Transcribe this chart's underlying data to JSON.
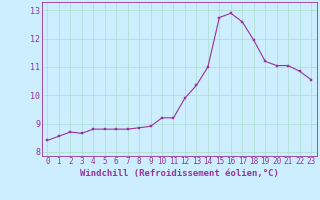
{
  "x": [
    0,
    1,
    2,
    3,
    4,
    5,
    6,
    7,
    8,
    9,
    10,
    11,
    12,
    13,
    14,
    15,
    16,
    17,
    18,
    19,
    20,
    21,
    22,
    23
  ],
  "y": [
    8.4,
    8.55,
    8.7,
    8.65,
    8.8,
    8.8,
    8.8,
    8.8,
    8.85,
    8.9,
    9.2,
    9.2,
    9.9,
    10.35,
    11.0,
    12.75,
    12.9,
    12.6,
    11.95,
    11.2,
    11.05,
    11.05,
    10.85,
    10.55
  ],
  "line_color": "#993399",
  "marker": "s",
  "markersize": 2.0,
  "linewidth": 0.8,
  "xlabel": "Windchill (Refroidissement éolien,°C)",
  "xlabel_color": "#993399",
  "xlabel_fontsize": 6.5,
  "background_color": "#cceeff",
  "grid_color": "#aaddcc",
  "axis_bg": "#cceeff",
  "ylim": [
    7.85,
    13.3
  ],
  "xlim": [
    -0.5,
    23.5
  ],
  "yticks": [
    8,
    9,
    10,
    11,
    12,
    13
  ],
  "xtick_labels": [
    "0",
    "1",
    "2",
    "3",
    "4",
    "5",
    "6",
    "7",
    "8",
    "9",
    "10",
    "11",
    "12",
    "13",
    "14",
    "15",
    "16",
    "17",
    "18",
    "19",
    "20",
    "21",
    "22",
    "23"
  ],
  "ytick_fontsize": 6,
  "xtick_fontsize": 5.5,
  "spine_color": "#993399"
}
